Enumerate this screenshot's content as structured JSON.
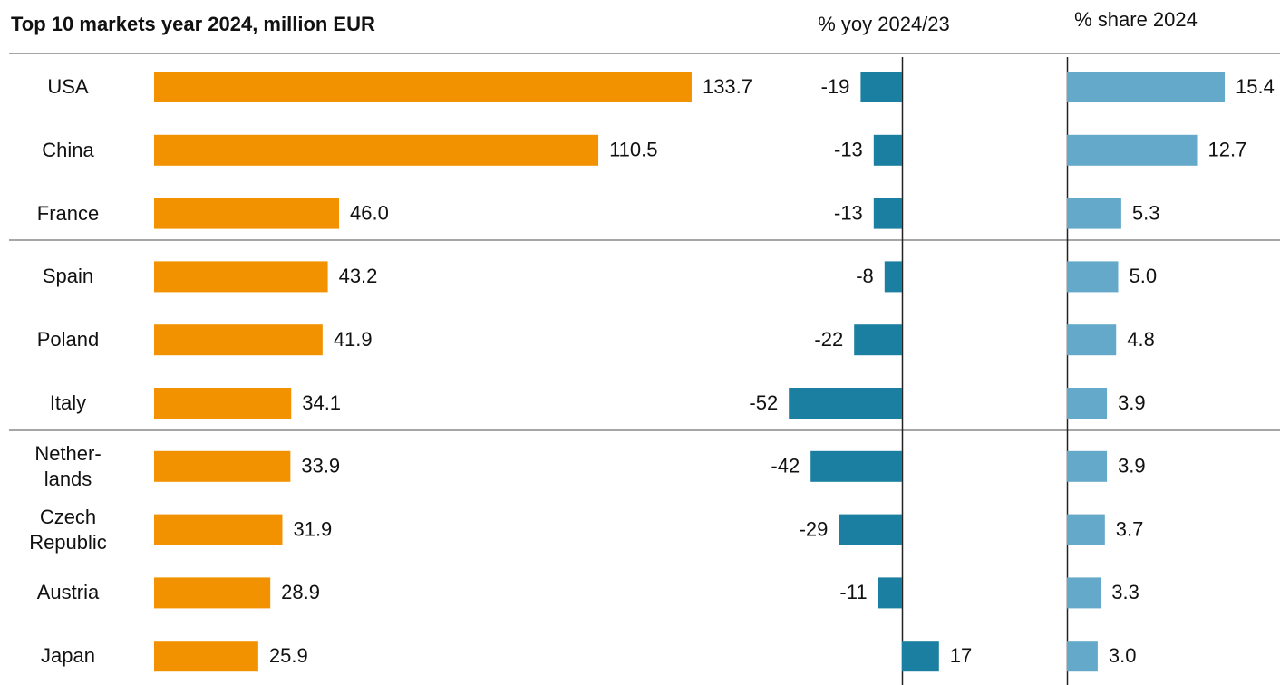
{
  "chart_data": [
    {
      "type": "bar",
      "title": "Top 10 markets year 2024, million EUR",
      "categories": [
        "USA",
        "China",
        "France",
        "Spain",
        "Poland",
        "Italy",
        "Nether-\nlands",
        "Czech\nRepublic",
        "Austria",
        "Japan"
      ],
      "values": [
        133.7,
        110.5,
        46.0,
        43.2,
        41.9,
        34.1,
        33.9,
        31.9,
        28.9,
        25.9
      ],
      "value_labels": [
        "133.7",
        "110.5",
        "46.0",
        "43.2",
        "41.9",
        "34.1",
        "33.9",
        "31.9",
        "28.9",
        "25.9"
      ],
      "color": "#f39200"
    },
    {
      "type": "bar",
      "title": "% yoy 2024/23",
      "values": [
        -19,
        -13,
        -13,
        -8,
        -22,
        -52,
        -42,
        -29,
        -11,
        17
      ],
      "color": "#1a7fa0"
    },
    {
      "type": "bar",
      "title": "% share 2024",
      "values": [
        15.4,
        12.7,
        5.3,
        5.0,
        4.8,
        3.9,
        3.9,
        3.7,
        3.3,
        3.0
      ],
      "value_labels": [
        "15.4",
        "12.7",
        "5.3",
        "5.0",
        "4.8",
        "3.9",
        "3.9",
        "3.7",
        "3.3",
        "3.0"
      ],
      "color": "#64a9c9"
    }
  ]
}
